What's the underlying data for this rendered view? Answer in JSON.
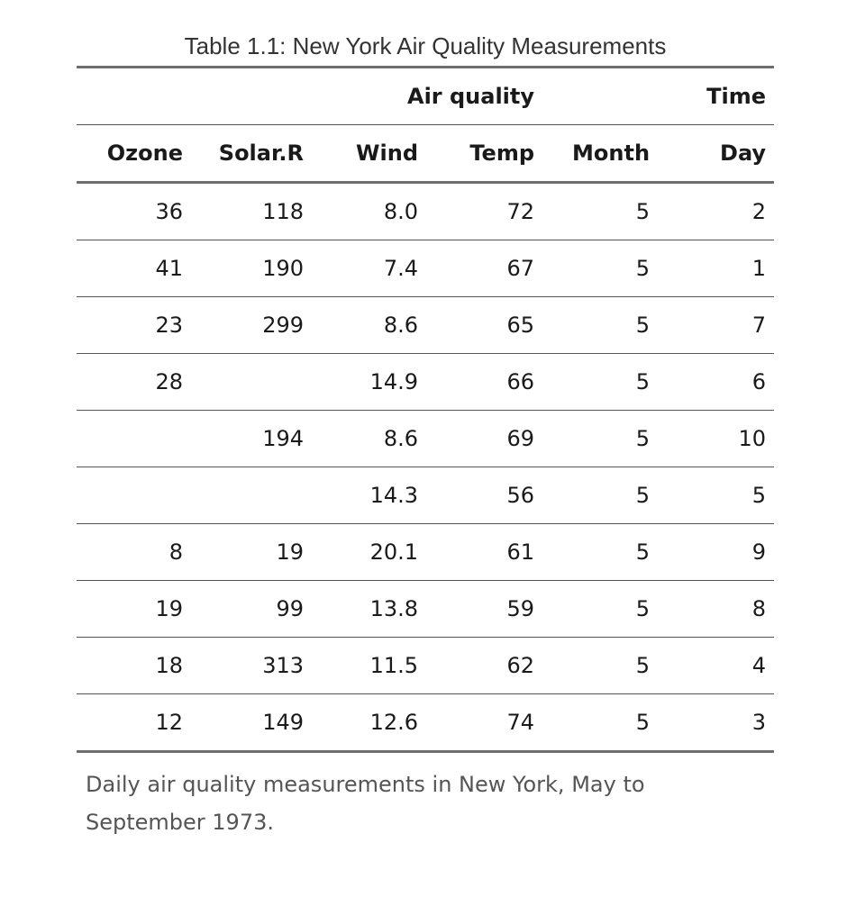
{
  "table": {
    "title": "Table 1.1: New York Air Quality Measurements",
    "spanners": {
      "air_quality": "Air quality",
      "time": "Time"
    },
    "columns": [
      "Ozone",
      "Solar.R",
      "Wind",
      "Temp",
      "Month",
      "Day"
    ],
    "rows": [
      [
        "36",
        "118",
        "8.0",
        "72",
        "5",
        "2"
      ],
      [
        "41",
        "190",
        "7.4",
        "67",
        "5",
        "1"
      ],
      [
        "23",
        "299",
        "8.6",
        "65",
        "5",
        "7"
      ],
      [
        "28",
        "",
        "14.9",
        "66",
        "5",
        "6"
      ],
      [
        "",
        "194",
        "8.6",
        "69",
        "5",
        "10"
      ],
      [
        "",
        "",
        "14.3",
        "56",
        "5",
        "5"
      ],
      [
        "8",
        "19",
        "20.1",
        "61",
        "5",
        "9"
      ],
      [
        "19",
        "99",
        "13.8",
        "59",
        "5",
        "8"
      ],
      [
        "18",
        "313",
        "11.5",
        "62",
        "5",
        "4"
      ],
      [
        "12",
        "149",
        "12.6",
        "74",
        "5",
        "3"
      ]
    ],
    "caption": "Daily air quality measurements in New York, May to September 1973."
  }
}
